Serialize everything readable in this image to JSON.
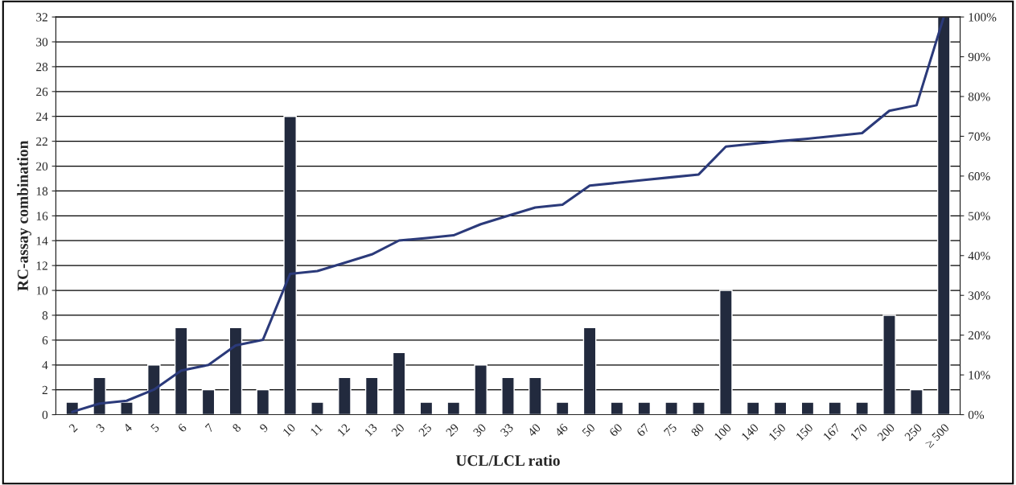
{
  "chart_data": {
    "type": "bar",
    "xlabel": "UCL/LCL ratio",
    "ylabel": "RC-assay combination",
    "categories": [
      "2",
      "3",
      "4",
      "5",
      "6",
      "7",
      "8",
      "9",
      "10",
      "11",
      "12",
      "13",
      "20",
      "25",
      "29",
      "30",
      "33",
      "40",
      "46",
      "50",
      "60",
      "67",
      "75",
      "80",
      "100",
      "140",
      "150",
      "150",
      "167",
      "170",
      "200",
      "250",
      "≥ 500"
    ],
    "series": [
      {
        "color": "#222a3e",
        "values": [
          1,
          3,
          1,
          4,
          7,
          2,
          7,
          2,
          24,
          1,
          3,
          3,
          5,
          1,
          1,
          4,
          3,
          3,
          1,
          7,
          1,
          1,
          1,
          1,
          10,
          1,
          1,
          1,
          1,
          1,
          8,
          2,
          32
        ]
      },
      {
        "type": "line",
        "axis": "y2",
        "color": "#2b3a7a",
        "values": [
          0.7,
          2.8,
          3.5,
          6.3,
          11.1,
          12.5,
          17.4,
          18.8,
          35.4,
          36.1,
          38.2,
          40.3,
          43.8,
          44.4,
          45.1,
          47.9,
          50.0,
          52.1,
          52.8,
          57.6,
          58.3,
          59.0,
          59.7,
          60.4,
          67.4,
          68.1,
          68.8,
          69.4,
          70.1,
          70.8,
          76.4,
          77.8,
          100
        ]
      }
    ],
    "ylim": [
      0,
      32
    ],
    "yticks": [
      0,
      2,
      4,
      6,
      8,
      10,
      12,
      14,
      16,
      18,
      20,
      22,
      24,
      26,
      28,
      30,
      32
    ],
    "y2lim": [
      0,
      100
    ],
    "y2ticks": [
      {
        "value": 0,
        "label": "0%"
      },
      {
        "value": 10,
        "label": "10%"
      },
      {
        "value": 20,
        "label": "20%"
      },
      {
        "value": 30,
        "label": "30%"
      },
      {
        "value": 40,
        "label": "40%"
      },
      {
        "value": 50,
        "label": "50%"
      },
      {
        "value": 60,
        "label": "60%"
      },
      {
        "value": 70,
        "label": "70%"
      },
      {
        "value": 80,
        "label": "80%"
      },
      {
        "value": 90,
        "label": "90%"
      },
      {
        "value": 100,
        "label": "100%"
      }
    ],
    "grid": "y",
    "marker": "none",
    "line_style": "solid"
  }
}
